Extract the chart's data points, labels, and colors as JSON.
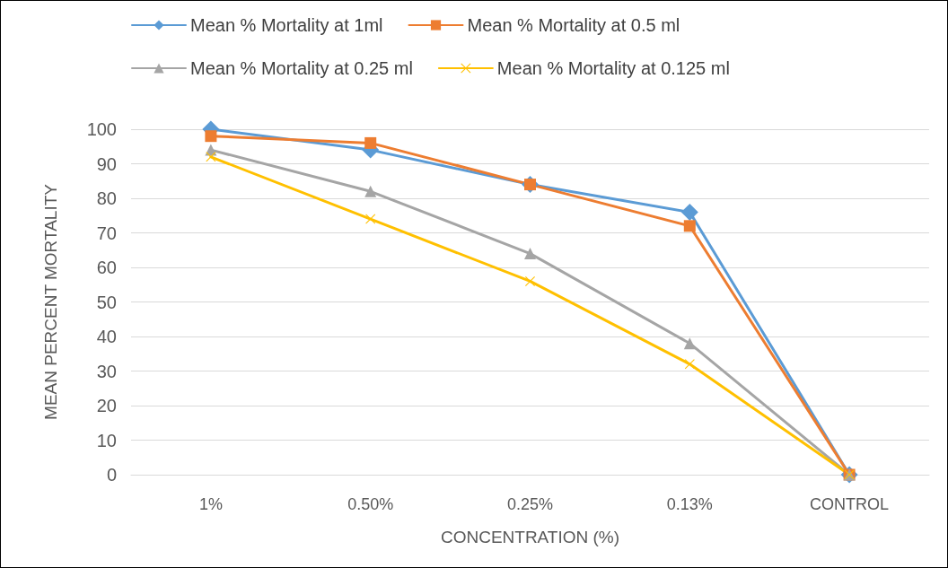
{
  "chart_data": {
    "type": "line",
    "xlabel": "CONCENTRATION (%)",
    "ylabel": "MEAN PERCENT MORTALITY",
    "categories": [
      "1%",
      "0.50%",
      "0.25%",
      "0.13%",
      "CONTROL"
    ],
    "series": [
      {
        "name": "Mean % Mortality at 1ml",
        "color": "#5b9bd5",
        "marker": "diamond",
        "values": [
          100,
          94,
          84,
          76,
          0
        ]
      },
      {
        "name": "Mean % Mortality at 0.5 ml",
        "color": "#ed7d31",
        "marker": "square",
        "values": [
          98,
          96,
          84,
          72,
          0
        ]
      },
      {
        "name": "Mean % Mortality at 0.25 ml",
        "color": "#a5a5a5",
        "marker": "triangle",
        "values": [
          94,
          82,
          64,
          38,
          0
        ]
      },
      {
        "name": "Mean % Mortality at 0.125 ml",
        "color": "#ffc000",
        "marker": "cross",
        "values": [
          92,
          74,
          56,
          32,
          0
        ]
      }
    ],
    "ylim": [
      0,
      100
    ],
    "yticks": [
      0,
      10,
      20,
      30,
      40,
      50,
      60,
      70,
      80,
      90,
      100
    ],
    "grid": "y",
    "legend": "top"
  }
}
